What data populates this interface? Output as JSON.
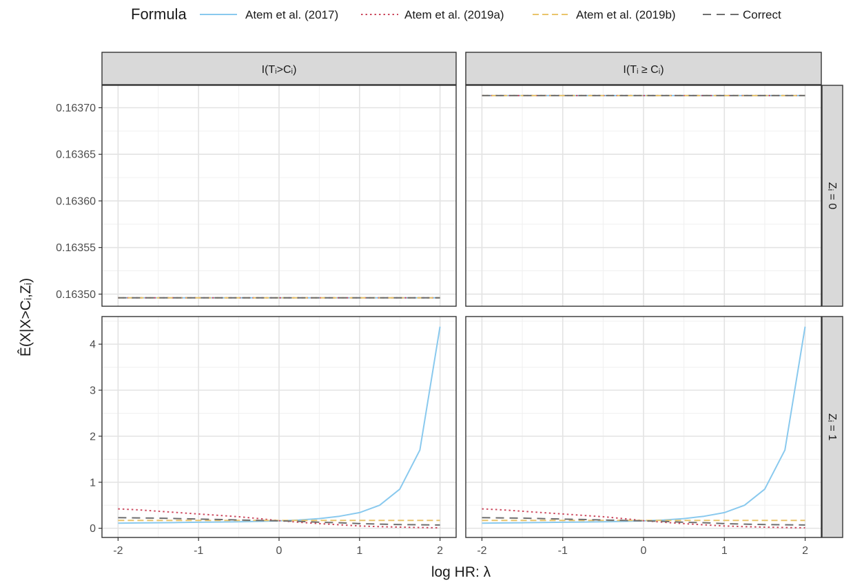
{
  "legend": {
    "title": "Formula",
    "entries": [
      {
        "label": "Atem et al. (2017)",
        "color": "#89c9ee",
        "dash": "solid"
      },
      {
        "label": "Atem et al. (2019a)",
        "color": "#cc4a5f",
        "dash": "dotted"
      },
      {
        "label": "Atem et al. (2019b)",
        "color": "#e9c46a",
        "dash": "dashed"
      },
      {
        "label": "Correct",
        "color": "#6e6e6e",
        "dash": "longdash"
      }
    ]
  },
  "chart_data": {
    "type": "line",
    "layout": "facet_grid",
    "xlabel": "log HR: λ",
    "ylabel": "Ê(X|X>Cᵢ,Zᵢ)",
    "x_ticks": [
      "-2",
      "-1",
      "0",
      "1",
      "2"
    ],
    "xlim": [
      -2.2,
      2.2
    ],
    "col_labels": [
      "I(Tᵢ>Cᵢ)",
      "I(Tᵢ ≥ Cᵢ)"
    ],
    "row_labels": [
      "Zᵢ = 0",
      "Zᵢ = 1"
    ],
    "x": [
      -2,
      -1.75,
      -1.5,
      -1.25,
      -1,
      -0.75,
      -0.5,
      -0.25,
      0,
      0.25,
      0.5,
      0.75,
      1,
      1.25,
      1.5,
      1.75,
      2
    ],
    "rows": [
      {
        "y_ticks": [
          "0.16350",
          "0.16355",
          "0.16360",
          "0.16365",
          "0.16370"
        ],
        "y_tick_values": [
          0.1635,
          0.16355,
          0.1636,
          0.16365,
          0.1637
        ],
        "ylim": [
          0.163487,
          0.163724
        ],
        "panels": [
          {
            "series": [
              {
                "name": "Atem et al. (2017)",
                "values": [
                  0.163496,
                  0.163496,
                  0.163496,
                  0.163496,
                  0.163496,
                  0.163496,
                  0.163496,
                  0.163496,
                  0.163496,
                  0.163496,
                  0.163496,
                  0.163496,
                  0.163496,
                  0.163496,
                  0.163496,
                  0.163496,
                  0.163496
                ]
              },
              {
                "name": "Atem et al. (2019a)",
                "values": [
                  0.163496,
                  0.163496,
                  0.163496,
                  0.163496,
                  0.163496,
                  0.163496,
                  0.163496,
                  0.163496,
                  0.163496,
                  0.163496,
                  0.163496,
                  0.163496,
                  0.163496,
                  0.163496,
                  0.163496,
                  0.163496,
                  0.163496
                ]
              },
              {
                "name": "Atem et al. (2019b)",
                "values": [
                  0.163496,
                  0.163496,
                  0.163496,
                  0.163496,
                  0.163496,
                  0.163496,
                  0.163496,
                  0.163496,
                  0.163496,
                  0.163496,
                  0.163496,
                  0.163496,
                  0.163496,
                  0.163496,
                  0.163496,
                  0.163496,
                  0.163496
                ]
              },
              {
                "name": "Correct",
                "values": [
                  0.163496,
                  0.163496,
                  0.163496,
                  0.163496,
                  0.163496,
                  0.163496,
                  0.163496,
                  0.163496,
                  0.163496,
                  0.163496,
                  0.163496,
                  0.163496,
                  0.163496,
                  0.163496,
                  0.163496,
                  0.163496,
                  0.163496
                ]
              }
            ]
          },
          {
            "series": [
              {
                "name": "Atem et al. (2017)",
                "values": [
                  0.163713,
                  0.163713,
                  0.163713,
                  0.163713,
                  0.163713,
                  0.163713,
                  0.163713,
                  0.163713,
                  0.163713,
                  0.163713,
                  0.163713,
                  0.163713,
                  0.163713,
                  0.163713,
                  0.163713,
                  0.163713,
                  0.163713
                ]
              },
              {
                "name": "Atem et al. (2019a)",
                "values": [
                  0.163713,
                  0.163713,
                  0.163713,
                  0.163713,
                  0.163713,
                  0.163713,
                  0.163713,
                  0.163713,
                  0.163713,
                  0.163713,
                  0.163713,
                  0.163713,
                  0.163713,
                  0.163713,
                  0.163713,
                  0.163713,
                  0.163713
                ]
              },
              {
                "name": "Atem et al. (2019b)",
                "values": [
                  0.163713,
                  0.163713,
                  0.163713,
                  0.163713,
                  0.163713,
                  0.163713,
                  0.163713,
                  0.163713,
                  0.163713,
                  0.163713,
                  0.163713,
                  0.163713,
                  0.163713,
                  0.163713,
                  0.163713,
                  0.163713,
                  0.163713
                ]
              },
              {
                "name": "Correct",
                "values": [
                  0.163713,
                  0.163713,
                  0.163713,
                  0.163713,
                  0.163713,
                  0.163713,
                  0.163713,
                  0.163713,
                  0.163713,
                  0.163713,
                  0.163713,
                  0.163713,
                  0.163713,
                  0.163713,
                  0.163713,
                  0.163713,
                  0.163713
                ]
              }
            ]
          }
        ]
      },
      {
        "y_ticks": [
          "0",
          "1",
          "2",
          "3",
          "4"
        ],
        "y_tick_values": [
          0,
          1,
          2,
          3,
          4
        ],
        "ylim": [
          -0.2,
          4.6
        ],
        "panels": [
          {
            "series": [
              {
                "name": "Atem et al. (2017)",
                "values": [
                  0.11,
                  0.115,
                  0.12,
                  0.125,
                  0.13,
                  0.135,
                  0.14,
                  0.15,
                  0.16,
                  0.18,
                  0.21,
                  0.26,
                  0.34,
                  0.5,
                  0.85,
                  1.7,
                  4.38
                ]
              },
              {
                "name": "Atem et al. (2019a)",
                "values": [
                  0.42,
                  0.4,
                  0.37,
                  0.34,
                  0.31,
                  0.28,
                  0.25,
                  0.21,
                  0.165,
                  0.13,
                  0.1,
                  0.075,
                  0.05,
                  0.035,
                  0.025,
                  0.015,
                  0.01
                ]
              },
              {
                "name": "Atem et al. (2019b)",
                "values": [
                  0.17,
                  0.17,
                  0.17,
                  0.17,
                  0.17,
                  0.17,
                  0.17,
                  0.17,
                  0.17,
                  0.17,
                  0.17,
                  0.17,
                  0.17,
                  0.17,
                  0.17,
                  0.17,
                  0.17
                ]
              },
              {
                "name": "Correct",
                "values": [
                  0.23,
                  0.225,
                  0.22,
                  0.21,
                  0.2,
                  0.19,
                  0.18,
                  0.17,
                  0.16,
                  0.15,
                  0.13,
                  0.12,
                  0.1,
                  0.09,
                  0.08,
                  0.075,
                  0.07
                ]
              }
            ]
          },
          {
            "series": [
              {
                "name": "Atem et al. (2017)",
                "values": [
                  0.11,
                  0.115,
                  0.12,
                  0.125,
                  0.13,
                  0.135,
                  0.14,
                  0.15,
                  0.16,
                  0.18,
                  0.21,
                  0.26,
                  0.34,
                  0.5,
                  0.85,
                  1.7,
                  4.38
                ]
              },
              {
                "name": "Atem et al. (2019a)",
                "values": [
                  0.42,
                  0.4,
                  0.37,
                  0.34,
                  0.31,
                  0.28,
                  0.25,
                  0.21,
                  0.165,
                  0.13,
                  0.1,
                  0.075,
                  0.05,
                  0.035,
                  0.025,
                  0.015,
                  0.01
                ]
              },
              {
                "name": "Atem et al. (2019b)",
                "values": [
                  0.17,
                  0.17,
                  0.17,
                  0.17,
                  0.17,
                  0.17,
                  0.17,
                  0.17,
                  0.17,
                  0.17,
                  0.17,
                  0.17,
                  0.17,
                  0.17,
                  0.17,
                  0.17,
                  0.17
                ]
              },
              {
                "name": "Correct",
                "values": [
                  0.23,
                  0.225,
                  0.22,
                  0.21,
                  0.2,
                  0.19,
                  0.18,
                  0.17,
                  0.16,
                  0.15,
                  0.13,
                  0.12,
                  0.1,
                  0.09,
                  0.08,
                  0.075,
                  0.07
                ]
              }
            ]
          }
        ]
      }
    ]
  }
}
